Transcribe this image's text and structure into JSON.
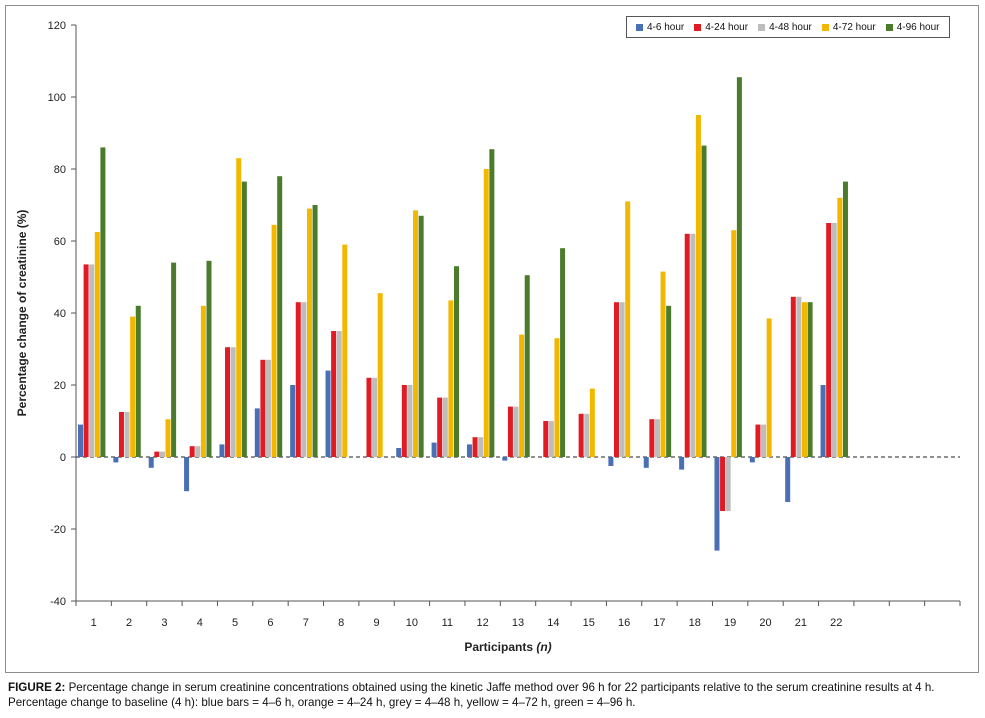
{
  "chart_data": {
    "type": "bar",
    "title": "",
    "xlabel": "Participants",
    "xlabel_suffix": "(n)",
    "ylabel": "Percentage change of creatinine (%)",
    "ylim": [
      -40,
      120
    ],
    "yticks": [
      -40,
      -20,
      0,
      20,
      40,
      60,
      80,
      100,
      120
    ],
    "grid": false,
    "legend_position": "top-right",
    "categories": [
      "1",
      "2",
      "3",
      "4",
      "5",
      "6",
      "7",
      "8",
      "9",
      "10",
      "11",
      "12",
      "13",
      "14",
      "15",
      "16",
      "17",
      "18",
      "19",
      "20",
      "21",
      "22"
    ],
    "extra_empty_slots": 3,
    "series": [
      {
        "name": "4-6 hour",
        "color": "#4a6fb5",
        "values": [
          9,
          -1.5,
          -3,
          -9.5,
          3.5,
          13.5,
          20,
          24,
          0,
          2.5,
          4,
          3.5,
          -1,
          0,
          0,
          -2.5,
          -3,
          -3.5,
          -26,
          -1.5,
          -12.5,
          20
        ]
      },
      {
        "name": "4-24 hour",
        "color": "#e01b24",
        "values": [
          53.5,
          12.5,
          1.5,
          3,
          30.5,
          27,
          43,
          35,
          22,
          20,
          16.5,
          5.5,
          14,
          10,
          12,
          43,
          10.5,
          62,
          -15,
          9,
          44.5,
          65
        ]
      },
      {
        "name": "4-48 hour",
        "color": "#bdbdbd",
        "values": [
          53.5,
          12.5,
          1.5,
          3,
          30.5,
          27,
          43,
          35,
          22,
          20,
          16.5,
          5.5,
          14,
          10,
          12,
          43,
          10.5,
          62,
          -15,
          9,
          44.5,
          65
        ]
      },
      {
        "name": "4-72 hour",
        "color": "#f2b800",
        "values": [
          62.5,
          39,
          10.5,
          42,
          83,
          64.5,
          69,
          59,
          45.5,
          68.5,
          43.5,
          80,
          34,
          33,
          19,
          71,
          51.5,
          95,
          63,
          38.5,
          43,
          72
        ]
      },
      {
        "name": "4-96 hour",
        "color": "#4a7c2c",
        "values": [
          86,
          42,
          54,
          54.5,
          76.5,
          78,
          70,
          0,
          0,
          67,
          53,
          85.5,
          50.5,
          58,
          0,
          0,
          42,
          86.5,
          105.5,
          0,
          43,
          76.5
        ]
      }
    ]
  },
  "caption": {
    "label": "FIGURE 2:",
    "text": " Percentage change in serum creatinine concentrations obtained using the kinetic Jaffe method over 96 h for 22 participants relative to the serum creatinine results at 4 h. Percentage change to baseline (4 h): blue bars = 4–6 h, orange = 4–24 h, grey = 4–48 h, yellow = 4–72 h, green = 4–96 h."
  }
}
